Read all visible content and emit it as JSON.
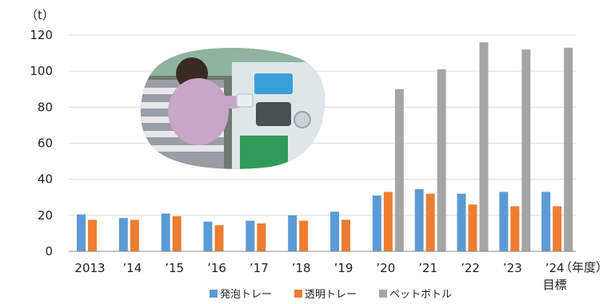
{
  "chart_data": {
    "type": "bar",
    "ylabel": "（t）",
    "xlabel": "（年度）",
    "ylim": [
      0,
      120
    ],
    "yticks": [
      0,
      20,
      40,
      60,
      80,
      100,
      120
    ],
    "grid": true,
    "legend_position": "bottom",
    "categories": [
      "2013",
      "’14",
      "’15",
      "’16",
      "’17",
      "’18",
      "’19",
      "’20",
      "’21",
      "’22",
      "’23",
      "’24"
    ],
    "category_note": {
      "index": 11,
      "text": "目標"
    },
    "series": [
      {
        "name": "発泡トレー",
        "color": "#5b9bd5",
        "values": [
          20.5,
          18.5,
          21,
          16.5,
          17,
          20,
          22,
          31,
          34.5,
          32,
          33,
          33
        ]
      },
      {
        "name": "透明トレー",
        "color": "#ed7d31",
        "values": [
          17.5,
          17.5,
          19.5,
          14.5,
          15.5,
          17,
          17.5,
          33,
          32,
          26,
          25,
          25
        ]
      },
      {
        "name": "ペットボトル",
        "color": "#a5a5a5",
        "values": [
          null,
          null,
          null,
          null,
          null,
          null,
          null,
          90,
          101,
          116,
          112,
          113
        ]
      }
    ]
  },
  "photo": {
    "icon": "recycling-machine-photo",
    "machine_screen_color": "#3aa0d8",
    "machine_body_color": "#dfe6e8",
    "bin_color": "#2f9a5a"
  }
}
